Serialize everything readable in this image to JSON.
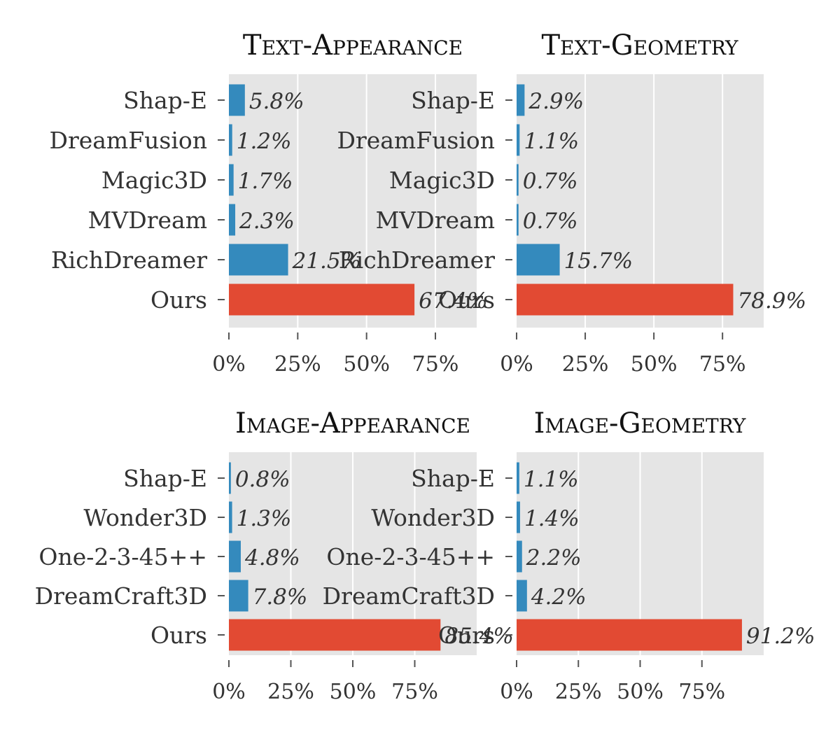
{
  "chart_data": [
    {
      "type": "bar",
      "orientation": "horizontal",
      "title": "Text-Appearance",
      "categories": [
        "Shap-E",
        "DreamFusion",
        "Magic3D",
        "MVDream",
        "RichDreamer",
        "Ours"
      ],
      "values": [
        5.8,
        1.2,
        1.7,
        2.3,
        21.5,
        67.4
      ],
      "data_labels": [
        "5.8%",
        "1.2%",
        "1.7%",
        "2.3%",
        "21.5%",
        "67.4%"
      ],
      "xlim": [
        0,
        90
      ],
      "xticks": [
        0,
        25,
        50,
        75
      ],
      "xtick_labels": [
        "0%",
        "25%",
        "50%",
        "75%"
      ],
      "grid": true,
      "colors": {
        "baseline": "#348abd",
        "ours": "#e24a33"
      }
    },
    {
      "type": "bar",
      "orientation": "horizontal",
      "title": "Text-Geometry",
      "categories": [
        "Shap-E",
        "DreamFusion",
        "Magic3D",
        "MVDream",
        "RichDreamer",
        "Ours"
      ],
      "values": [
        2.9,
        1.1,
        0.7,
        0.7,
        15.7,
        78.9
      ],
      "data_labels": [
        "2.9%",
        "1.1%",
        "0.7%",
        "0.7%",
        "15.7%",
        "78.9%"
      ],
      "xlim": [
        0,
        90
      ],
      "xticks": [
        0,
        25,
        50,
        75
      ],
      "xtick_labels": [
        "0%",
        "25%",
        "50%",
        "75%"
      ],
      "grid": true,
      "colors": {
        "baseline": "#348abd",
        "ours": "#e24a33"
      }
    },
    {
      "type": "bar",
      "orientation": "horizontal",
      "title": "Image-Appearance",
      "categories": [
        "Shap-E",
        "Wonder3D",
        "One-2-3-45++",
        "DreamCraft3D",
        "Ours"
      ],
      "values": [
        0.8,
        1.3,
        4.8,
        7.8,
        85.4
      ],
      "data_labels": [
        "0.8%",
        "1.3%",
        "4.8%",
        "7.8%",
        "85.4%"
      ],
      "xlim": [
        0,
        100
      ],
      "xticks": [
        0,
        25,
        50,
        75
      ],
      "xtick_labels": [
        "0%",
        "25%",
        "50%",
        "75%"
      ],
      "grid": true,
      "colors": {
        "baseline": "#348abd",
        "ours": "#e24a33"
      }
    },
    {
      "type": "bar",
      "orientation": "horizontal",
      "title": "Image-Geometry",
      "categories": [
        "Shap-E",
        "Wonder3D",
        "One-2-3-45++",
        "DreamCraft3D",
        "Ours"
      ],
      "values": [
        1.1,
        1.4,
        2.2,
        4.2,
        91.2
      ],
      "data_labels": [
        "1.1%",
        "1.4%",
        "2.2%",
        "4.2%",
        "91.2%"
      ],
      "xlim": [
        0,
        100
      ],
      "xticks": [
        0,
        25,
        50,
        75
      ],
      "xtick_labels": [
        "0%",
        "25%",
        "50%",
        "75%"
      ],
      "grid": true,
      "colors": {
        "baseline": "#348abd",
        "ours": "#e24a33"
      }
    }
  ]
}
